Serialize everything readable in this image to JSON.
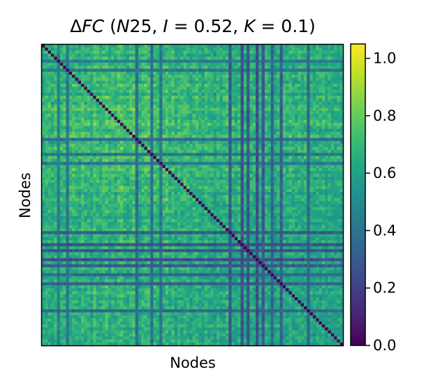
{
  "chart_data": {
    "type": "heatmap",
    "title_parts": {
      "delta": "Δ",
      "fc": "FC",
      "open": " (",
      "n": "N",
      "n_value": "25, ",
      "i": "I",
      "i_value": " = 0.52, ",
      "k": "K",
      "k_value": " = 0.1)"
    },
    "xlabel": "Nodes",
    "ylabel": "Nodes",
    "colormap": "viridis",
    "n_nodes": 100,
    "diagonal_value": 0.0,
    "vmin": 0.0,
    "vmax": 1.05,
    "colorbar_ticks": [
      {
        "value": 0.0,
        "label": "0.0"
      },
      {
        "value": 0.2,
        "label": "0.2"
      },
      {
        "value": 0.4,
        "label": "0.4"
      },
      {
        "value": 0.6,
        "label": "0.6"
      },
      {
        "value": 0.8,
        "label": "0.8"
      },
      {
        "value": 1.0,
        "label": "1.0"
      }
    ],
    "node_mean_profile": [
      0.62,
      0.65,
      0.7,
      0.6,
      0.72,
      0.58,
      0.66,
      0.7,
      0.55,
      0.68,
      0.74,
      0.7,
      0.62,
      0.76,
      0.68,
      0.72,
      0.6,
      0.78,
      0.7,
      0.64,
      0.74,
      0.8,
      0.68,
      0.72,
      0.66,
      0.78,
      0.82,
      0.7,
      0.64,
      0.74,
      0.8,
      0.76,
      0.62,
      0.72,
      0.78,
      0.74,
      0.68,
      0.76,
      0.7,
      0.58,
      0.72,
      0.76,
      0.68,
      0.74,
      0.62,
      0.7,
      0.66,
      0.74,
      0.7,
      0.6,
      0.68,
      0.72,
      0.64,
      0.58,
      0.7,
      0.66,
      0.62,
      0.55,
      0.68,
      0.6,
      0.64,
      0.7,
      0.45,
      0.62,
      0.58,
      0.66,
      0.38,
      0.6,
      0.4,
      0.64,
      0.62,
      0.36,
      0.6,
      0.44,
      0.66,
      0.58,
      0.62,
      0.55,
      0.66,
      0.42,
      0.64,
      0.6,
      0.68,
      0.62,
      0.58,
      0.65,
      0.6,
      0.64,
      0.5,
      0.62,
      0.58,
      0.64,
      0.6,
      0.66,
      0.56,
      0.62,
      0.58,
      0.6,
      0.62,
      0.58
    ],
    "weak_rows": [
      {
        "node": 5,
        "level": 0.45
      },
      {
        "node": 8,
        "level": 0.42
      },
      {
        "node": 31,
        "level": 0.38
      },
      {
        "node": 36,
        "level": 0.4
      },
      {
        "node": 39,
        "level": 0.42
      },
      {
        "node": 62,
        "level": 0.3
      },
      {
        "node": 66,
        "level": 0.26
      },
      {
        "node": 68,
        "level": 0.28
      },
      {
        "node": 71,
        "level": 0.25
      },
      {
        "node": 73,
        "level": 0.3
      },
      {
        "node": 76,
        "level": 0.35
      },
      {
        "node": 79,
        "level": 0.32
      },
      {
        "node": 88,
        "level": 0.36
      }
    ]
  }
}
